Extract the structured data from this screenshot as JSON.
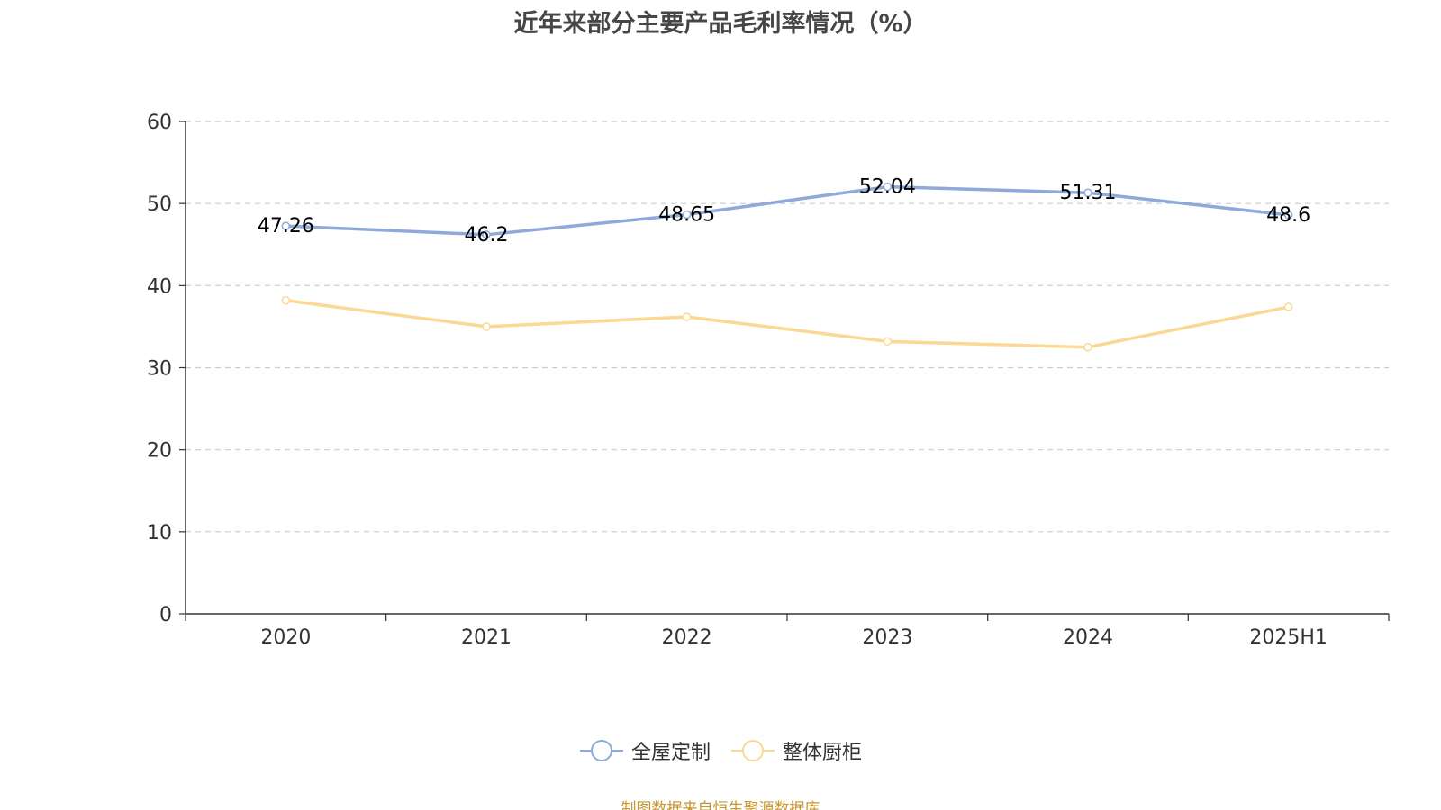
{
  "chart_data": {
    "type": "line",
    "title": "近年来部分主要产品毛利率情况（%）",
    "categories": [
      "2020",
      "2021",
      "2022",
      "2023",
      "2024",
      "2025H1"
    ],
    "ylim": [
      0,
      60
    ],
    "yticks": [
      0,
      10,
      20,
      30,
      40,
      50,
      60
    ],
    "grid": true,
    "legend_position": "bottom-center",
    "series": [
      {
        "name": "全屋定制",
        "color": "#8eaadb",
        "values": [
          47.26,
          46.2,
          48.65,
          52.04,
          51.31,
          48.6
        ],
        "labels": [
          "47.26",
          "46.2",
          "48.65",
          "52.04",
          "51.31",
          "48.6"
        ]
      },
      {
        "name": "整体厨柜",
        "color": "#fbd893",
        "values": [
          38.2,
          35.0,
          36.2,
          33.2,
          32.5,
          37.4
        ]
      }
    ]
  },
  "source_note": "制图数据来自恒生聚源数据库"
}
